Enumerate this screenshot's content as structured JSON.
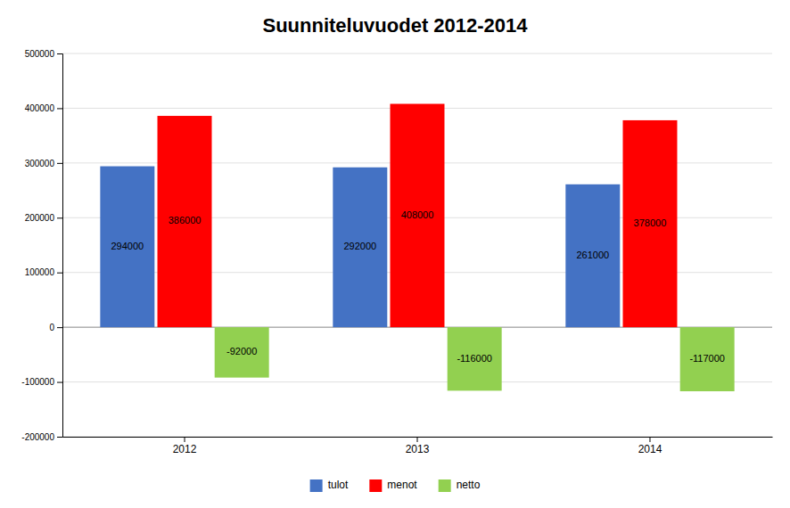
{
  "chart_data": {
    "type": "bar",
    "title": "Suunniteluvuodet 2012-2014",
    "categories": [
      "2012",
      "2013",
      "2014"
    ],
    "series": [
      {
        "name": "tulot",
        "color": "#4472C4",
        "values": [
          294000,
          292000,
          261000
        ]
      },
      {
        "name": "menot",
        "color": "#FF0000",
        "values": [
          386000,
          408000,
          378000
        ]
      },
      {
        "name": "netto",
        "color": "#92D050",
        "values": [
          -92000,
          -116000,
          -117000
        ]
      }
    ],
    "ylim": [
      -200000,
      500000
    ],
    "yticks": [
      -200000,
      -100000,
      0,
      100000,
      200000,
      300000,
      400000,
      500000
    ],
    "grid": true,
    "legend": "bottom",
    "data_labels": true
  }
}
